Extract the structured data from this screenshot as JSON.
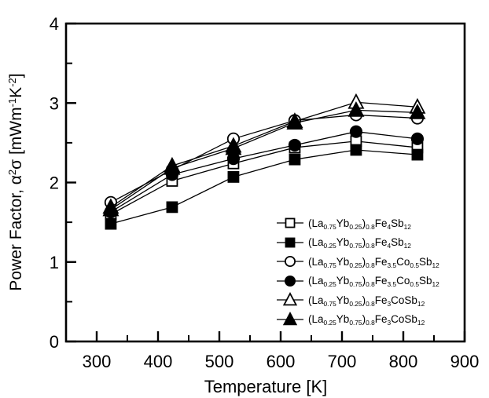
{
  "figure": {
    "ink_color": "#000000",
    "background_color": "#ffffff"
  },
  "axes": {
    "xlabel": "Temperature [K]",
    "ylabel_rich": "Power Factor, α^{2}σ [mWm^{-1}K^{-2}]",
    "xlim": [
      250,
      900
    ],
    "ylim": [
      0,
      4
    ],
    "x_major_ticks": [
      300,
      400,
      500,
      600,
      700,
      800,
      900
    ],
    "x_minor_step": 50,
    "y_major_ticks": [
      0,
      1,
      2,
      3,
      4
    ],
    "y_minor_step": 0.5,
    "grid": "off"
  },
  "chart_data": {
    "type": "line",
    "title": "",
    "xlabel": "Temperature [K]",
    "ylabel": "Power Factor, a^2*sigma [mWm^-1K^-2]",
    "legend_position": "lower-right-inside",
    "x": [
      323,
      423,
      523,
      623,
      723,
      823
    ],
    "series": [
      {
        "name": "(La_{0.75}Yb_{0.25})_{0.8}Fe_{4}Sb_{12}",
        "marker": "square-open",
        "values": [
          1.6,
          2.02,
          2.24,
          2.44,
          2.52,
          2.44
        ]
      },
      {
        "name": "(La_{0.25}Yb_{0.75})_{0.8}Fe_{4}Sb_{12}",
        "marker": "square-filled",
        "values": [
          1.48,
          1.69,
          2.07,
          2.29,
          2.41,
          2.35
        ]
      },
      {
        "name": "(La_{0.75}Yb_{0.25})_{0.8}Fe_{3.5}Co_{0.5}Sb_{12}",
        "marker": "circle-open",
        "values": [
          1.75,
          2.16,
          2.55,
          2.78,
          2.85,
          2.81
        ]
      },
      {
        "name": "(La_{0.25}Yb_{0.75})_{0.8}Fe_{3.5}Co_{0.5}Sb_{12}",
        "marker": "circle-filled",
        "values": [
          1.63,
          2.1,
          2.3,
          2.47,
          2.64,
          2.55
        ]
      },
      {
        "name": "(La_{0.75}Yb_{0.25})_{0.8}Fe_{3}CoSb_{12}",
        "marker": "triangle-open",
        "values": [
          1.69,
          2.21,
          2.46,
          2.77,
          3.01,
          2.95
        ]
      },
      {
        "name": "(La_{0.25}Yb_{0.75})_{0.8}Fe_{3}CoSb_{12}",
        "marker": "triangle-filled",
        "values": [
          1.66,
          2.18,
          2.43,
          2.75,
          2.91,
          2.88
        ]
      }
    ]
  }
}
